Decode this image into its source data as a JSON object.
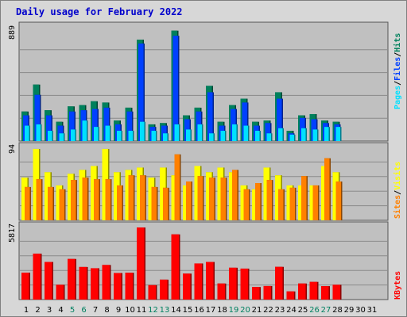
{
  "title": "Daily usage for February 2022",
  "colors": {
    "outer_bg": "#d7d7d7",
    "plot_bg": "#c0c0c0",
    "grid": "#8a8a8a",
    "title_text": "#0000cc",
    "hits": "#00805c",
    "files": "#0040ff",
    "pages": "#00e0ff",
    "visits": "#ffff00",
    "sites": "#ff8000",
    "kbytes": "#ff0000",
    "weekend_label": "#008060",
    "weekday_label": "#000000"
  },
  "right_labels": {
    "pages": "Pages",
    "files": "Files",
    "hits": "Hits",
    "sep": "/",
    "sites": "Sites",
    "visits": "Visits",
    "kbytes": "KBytes"
  },
  "chart_data": [
    {
      "type": "bar",
      "name": "hits-files-pages",
      "ymax_label": "889",
      "ylim": [
        0,
        889
      ],
      "categories": [
        "1",
        "2",
        "3",
        "4",
        "5",
        "6",
        "7",
        "8",
        "9",
        "10",
        "11",
        "12",
        "13",
        "14",
        "15",
        "16",
        "17",
        "18",
        "19",
        "20",
        "21",
        "22",
        "23",
        "24",
        "25",
        "26",
        "27",
        "28",
        "29",
        "30",
        "31"
      ],
      "series": [
        {
          "name": "Hits",
          "values": [
            230,
            440,
            240,
            150,
            270,
            280,
            310,
            300,
            160,
            260,
            790,
            130,
            140,
            860,
            200,
            260,
            430,
            150,
            280,
            330,
            150,
            160,
            380,
            80,
            200,
            210,
            160,
            150,
            null,
            null,
            null
          ]
        },
        {
          "name": "Files",
          "values": [
            200,
            360,
            200,
            120,
            230,
            240,
            250,
            260,
            130,
            230,
            760,
            110,
            120,
            820,
            170,
            230,
            380,
            120,
            250,
            300,
            120,
            140,
            330,
            60,
            180,
            170,
            140,
            130,
            null,
            null,
            null
          ]
        },
        {
          "name": "Pages",
          "values": [
            120,
            130,
            80,
            60,
            90,
            160,
            110,
            120,
            80,
            80,
            150,
            80,
            60,
            130,
            90,
            130,
            60,
            80,
            130,
            120,
            80,
            60,
            100,
            50,
            100,
            90,
            110,
            110,
            null,
            null,
            null
          ]
        }
      ]
    },
    {
      "type": "bar",
      "name": "visits-sites",
      "ymax_label": "94",
      "ylim": [
        0,
        94
      ],
      "categories": [
        "1",
        "2",
        "3",
        "4",
        "5",
        "6",
        "7",
        "8",
        "9",
        "10",
        "11",
        "12",
        "13",
        "14",
        "15",
        "16",
        "17",
        "18",
        "19",
        "20",
        "21",
        "22",
        "23",
        "24",
        "25",
        "26",
        "27",
        "28",
        "29",
        "30",
        "31"
      ],
      "series": [
        {
          "name": "Visits",
          "values": [
            55,
            92,
            62,
            45,
            60,
            65,
            70,
            92,
            62,
            65,
            68,
            55,
            68,
            58,
            45,
            70,
            62,
            68,
            62,
            45,
            40,
            68,
            58,
            45,
            45,
            45,
            70,
            62,
            null,
            null,
            null
          ]
        },
        {
          "name": "Sites",
          "values": [
            43,
            53,
            43,
            40,
            52,
            55,
            53,
            53,
            45,
            58,
            58,
            43,
            42,
            85,
            50,
            57,
            55,
            55,
            65,
            40,
            48,
            52,
            40,
            42,
            57,
            45,
            80,
            50,
            null,
            null,
            null
          ]
        }
      ]
    },
    {
      "type": "bar",
      "name": "kbytes",
      "ymax_label": "5817",
      "ylim": [
        0,
        5817
      ],
      "categories": [
        "1",
        "2",
        "3",
        "4",
        "5",
        "6",
        "7",
        "8",
        "9",
        "10",
        "11",
        "12",
        "13",
        "14",
        "15",
        "16",
        "17",
        "18",
        "19",
        "20",
        "21",
        "22",
        "23",
        "24",
        "25",
        "26",
        "27",
        "28",
        "29",
        "30",
        "31"
      ],
      "series": [
        {
          "name": "KBytes",
          "values": [
            2150,
            3660,
            3000,
            1180,
            3240,
            2600,
            2500,
            2760,
            2120,
            2140,
            5750,
            1150,
            1590,
            5200,
            2070,
            2880,
            3000,
            1280,
            2540,
            2470,
            1000,
            1080,
            2610,
            650,
            1280,
            1410,
            1070,
            1180,
            null,
            null,
            null
          ]
        }
      ]
    }
  ],
  "x_labels": [
    {
      "text": "1",
      "weekend": false
    },
    {
      "text": "2",
      "weekend": false
    },
    {
      "text": "3",
      "weekend": false
    },
    {
      "text": "4",
      "weekend": false
    },
    {
      "text": "5",
      "weekend": true
    },
    {
      "text": "6",
      "weekend": true
    },
    {
      "text": "7",
      "weekend": false
    },
    {
      "text": "8",
      "weekend": false
    },
    {
      "text": "9",
      "weekend": false
    },
    {
      "text": "10",
      "weekend": false
    },
    {
      "text": "11",
      "weekend": false
    },
    {
      "text": "12",
      "weekend": true
    },
    {
      "text": "13",
      "weekend": true
    },
    {
      "text": "14",
      "weekend": false
    },
    {
      "text": "15",
      "weekend": false
    },
    {
      "text": "16",
      "weekend": false
    },
    {
      "text": "17",
      "weekend": false
    },
    {
      "text": "18",
      "weekend": false
    },
    {
      "text": "19",
      "weekend": true
    },
    {
      "text": "20",
      "weekend": true
    },
    {
      "text": "21",
      "weekend": false
    },
    {
      "text": "22",
      "weekend": false
    },
    {
      "text": "23",
      "weekend": false
    },
    {
      "text": "24",
      "weekend": false
    },
    {
      "text": "25",
      "weekend": false
    },
    {
      "text": "26",
      "weekend": true
    },
    {
      "text": "27",
      "weekend": true
    },
    {
      "text": "28",
      "weekend": false
    },
    {
      "text": "29",
      "weekend": false
    },
    {
      "text": "30",
      "weekend": false
    },
    {
      "text": "31",
      "weekend": false
    }
  ]
}
